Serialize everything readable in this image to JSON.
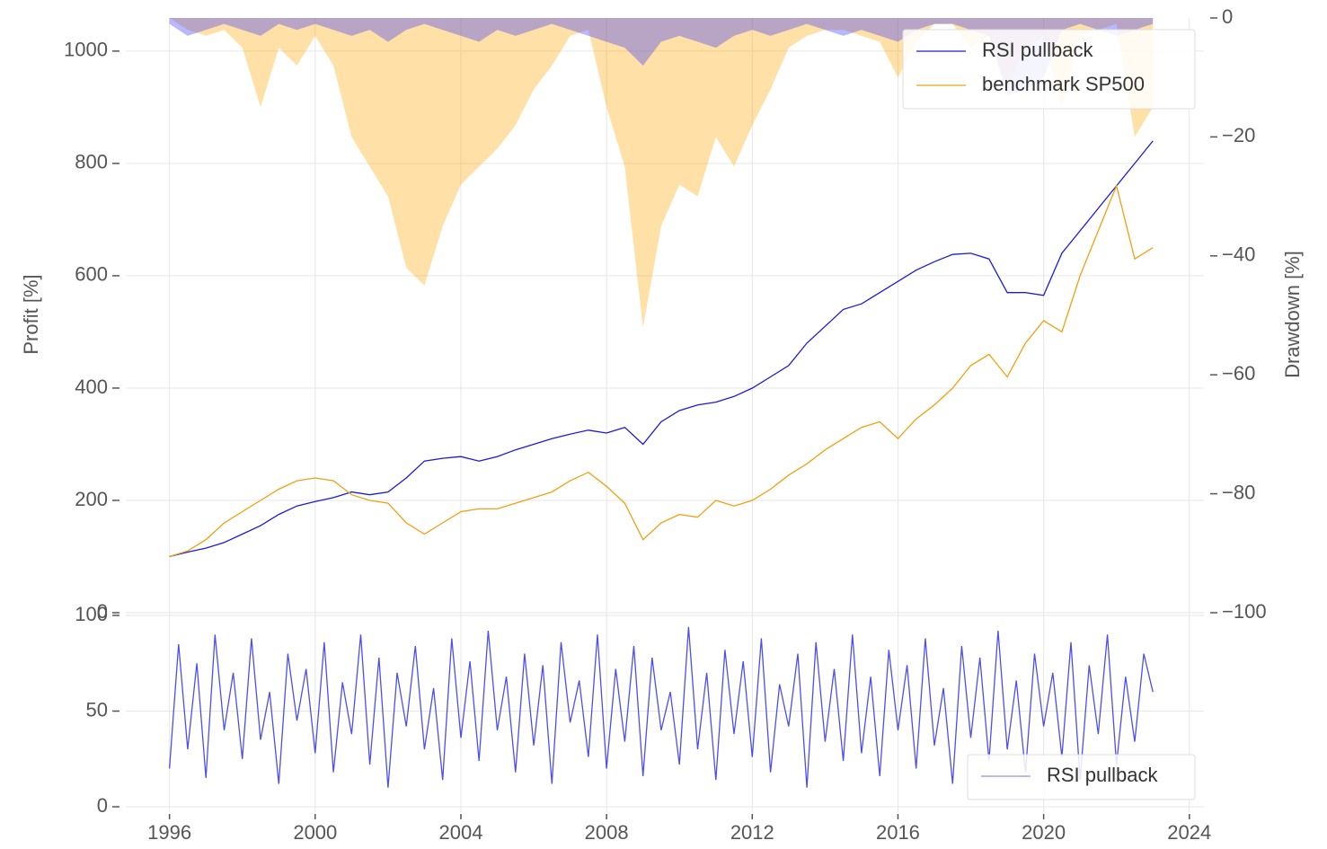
{
  "chart_data": [
    {
      "type": "line",
      "x": [
        1996,
        1996.5,
        1997,
        1997.5,
        1998,
        1998.5,
        1999,
        1999.5,
        2000,
        2000.5,
        2001,
        2001.5,
        2002,
        2002.5,
        2003,
        2003.5,
        2004,
        2004.5,
        2005,
        2005.5,
        2006,
        2006.5,
        2007,
        2007.5,
        2008,
        2008.5,
        2009,
        2009.5,
        2010,
        2010.5,
        2011,
        2011.5,
        2012,
        2012.5,
        2013,
        2013.5,
        2014,
        2014.5,
        2015,
        2015.5,
        2016,
        2016.5,
        2017,
        2017.5,
        2018,
        2018.5,
        2019,
        2019.5,
        2020,
        2020.5,
        2021,
        2021.5,
        2022,
        2022.5,
        2023
      ],
      "series": [
        {
          "type": "area",
          "axis": "y2",
          "color": "#ffa500",
          "values": [
            0,
            -2,
            -3,
            -2,
            -5,
            -15,
            -5,
            -8,
            -3,
            -8,
            -20,
            -25,
            -30,
            -42,
            -45,
            -35,
            -28,
            -25,
            -22,
            -18,
            -12,
            -8,
            -3,
            -2,
            -15,
            -25,
            -52,
            -35,
            -28,
            -30,
            -20,
            -25,
            -18,
            -12,
            -5,
            -3,
            -2,
            -2,
            -3,
            -4,
            -10,
            -4,
            -1,
            -1,
            -5,
            -3,
            -12,
            -5,
            -3,
            -15,
            -3,
            -2,
            -1,
            -20,
            -15
          ]
        },
        {
          "type": "area",
          "axis": "y2",
          "color": "#3333ff",
          "values": [
            -1,
            -3,
            -2,
            -1,
            -2,
            -3,
            -1,
            -2,
            -1,
            -2,
            -3,
            -2,
            -4,
            -2,
            -1,
            -2,
            -3,
            -4,
            -2,
            -3,
            -2,
            -1,
            -2,
            -3,
            -4,
            -5,
            -8,
            -4,
            -3,
            -4,
            -5,
            -3,
            -2,
            -3,
            -2,
            -1,
            -2,
            -3,
            -2,
            -3,
            -4,
            -2,
            -1,
            -1,
            -2,
            -3,
            -13,
            -12,
            -10,
            -2,
            -1,
            -2,
            -3,
            -2,
            -1
          ]
        },
        {
          "name": "RSI pullback",
          "color": "#1a1ae0",
          "values": [
            100,
            108,
            115,
            125,
            140,
            155,
            175,
            190,
            198,
            205,
            215,
            210,
            215,
            240,
            270,
            275,
            278,
            270,
            278,
            290,
            300,
            310,
            318,
            325,
            320,
            330,
            300,
            340,
            360,
            370,
            375,
            385,
            400,
            420,
            440,
            480,
            510,
            540,
            550,
            570,
            590,
            610,
            625,
            638,
            640,
            630,
            570,
            570,
            565,
            640,
            680,
            720,
            760,
            800,
            840
          ]
        },
        {
          "name": "benchmark SP500",
          "color": "#f0a010",
          "values": [
            100,
            110,
            130,
            160,
            180,
            200,
            220,
            235,
            240,
            235,
            210,
            200,
            195,
            160,
            140,
            160,
            180,
            185,
            185,
            195,
            205,
            215,
            235,
            250,
            225,
            195,
            130,
            160,
            175,
            170,
            200,
            190,
            200,
            220,
            245,
            265,
            290,
            310,
            330,
            340,
            310,
            345,
            370,
            400,
            440,
            460,
            420,
            480,
            520,
            500,
            600,
            680,
            760,
            630,
            650
          ]
        }
      ],
      "ylabel": "Profit [%]",
      "y2label": "Drawdown [%]",
      "xlim": [
        1994.8,
        2024.4
      ],
      "xticks": [
        1996,
        2000,
        2004,
        2008,
        2012,
        2016,
        2020,
        2024
      ],
      "ylim": [
        0,
        1059
      ],
      "yticks": [
        0,
        200,
        400,
        600,
        800,
        1000
      ],
      "y2lim": [
        -100,
        0
      ],
      "y2ticks": [
        0,
        {
          "value": -20,
          "label": "−20"
        },
        {
          "value": -40,
          "label": "−40"
        },
        {
          "value": -60,
          "label": "−60"
        },
        {
          "value": -80,
          "label": "−80"
        },
        {
          "value": -100,
          "label": "−100"
        }
      ],
      "grid": true,
      "legend": "upper right"
    },
    {
      "type": "line",
      "x": [
        1996,
        1996.25,
        1996.5,
        1996.75,
        1997,
        1997.25,
        1997.5,
        1997.75,
        1998,
        1998.25,
        1998.5,
        1998.75,
        1999,
        1999.25,
        1999.5,
        1999.75,
        2000,
        2000.25,
        2000.5,
        2000.75,
        2001,
        2001.25,
        2001.5,
        2001.75,
        2002,
        2002.25,
        2002.5,
        2002.75,
        2003,
        2003.25,
        2003.5,
        2003.75,
        2004,
        2004.25,
        2004.5,
        2004.75,
        2005,
        2005.25,
        2005.5,
        2005.75,
        2006,
        2006.25,
        2006.5,
        2006.75,
        2007,
        2007.25,
        2007.5,
        2007.75,
        2008,
        2008.25,
        2008.5,
        2008.75,
        2009,
        2009.25,
        2009.5,
        2009.75,
        2010,
        2010.25,
        2010.5,
        2010.75,
        2011,
        2011.25,
        2011.5,
        2011.75,
        2012,
        2012.25,
        2012.5,
        2012.75,
        2013,
        2013.25,
        2013.5,
        2013.75,
        2014,
        2014.25,
        2014.5,
        2014.75,
        2015,
        2015.25,
        2015.5,
        2015.75,
        2016,
        2016.25,
        2016.5,
        2016.75,
        2017,
        2017.25,
        2017.5,
        2017.75,
        2018,
        2018.25,
        2018.5,
        2018.75,
        2019,
        2019.25,
        2019.5,
        2019.75,
        2020,
        2020.25,
        2020.5,
        2020.75,
        2021,
        2021.25,
        2021.5,
        2021.75,
        2022,
        2022.25,
        2022.5,
        2022.75,
        2023
      ],
      "series": [
        {
          "name": "RSI pullback",
          "color": "#2020ee",
          "values": [
            20,
            85,
            30,
            75,
            15,
            90,
            40,
            70,
            25,
            88,
            35,
            60,
            12,
            80,
            45,
            72,
            28,
            86,
            18,
            65,
            38,
            90,
            22,
            78,
            10,
            70,
            42,
            84,
            30,
            62,
            14,
            88,
            36,
            76,
            24,
            92,
            40,
            68,
            18,
            80,
            32,
            74,
            12,
            86,
            44,
            66,
            26,
            90,
            20,
            72,
            34,
            84,
            16,
            78,
            40,
            60,
            22,
            94,
            30,
            70,
            14,
            82,
            38,
            76,
            26,
            88,
            18,
            64,
            42,
            80,
            10,
            86,
            34,
            72,
            24,
            90,
            28,
            68,
            16,
            82,
            40,
            74,
            20,
            88,
            32,
            62,
            12,
            84,
            36,
            78,
            24,
            92,
            30,
            66,
            18,
            80,
            42,
            70,
            26,
            86,
            14,
            74,
            38,
            90,
            22,
            68,
            34,
            80,
            60
          ]
        }
      ],
      "xlim": [
        1994.8,
        2024.4
      ],
      "xticks": [
        1996,
        2000,
        2004,
        2008,
        2012,
        2016,
        2020,
        2024
      ],
      "ylim": [
        0,
        100
      ],
      "yticks": [
        0,
        50,
        100
      ],
      "grid": true,
      "legend": "lower right"
    }
  ]
}
